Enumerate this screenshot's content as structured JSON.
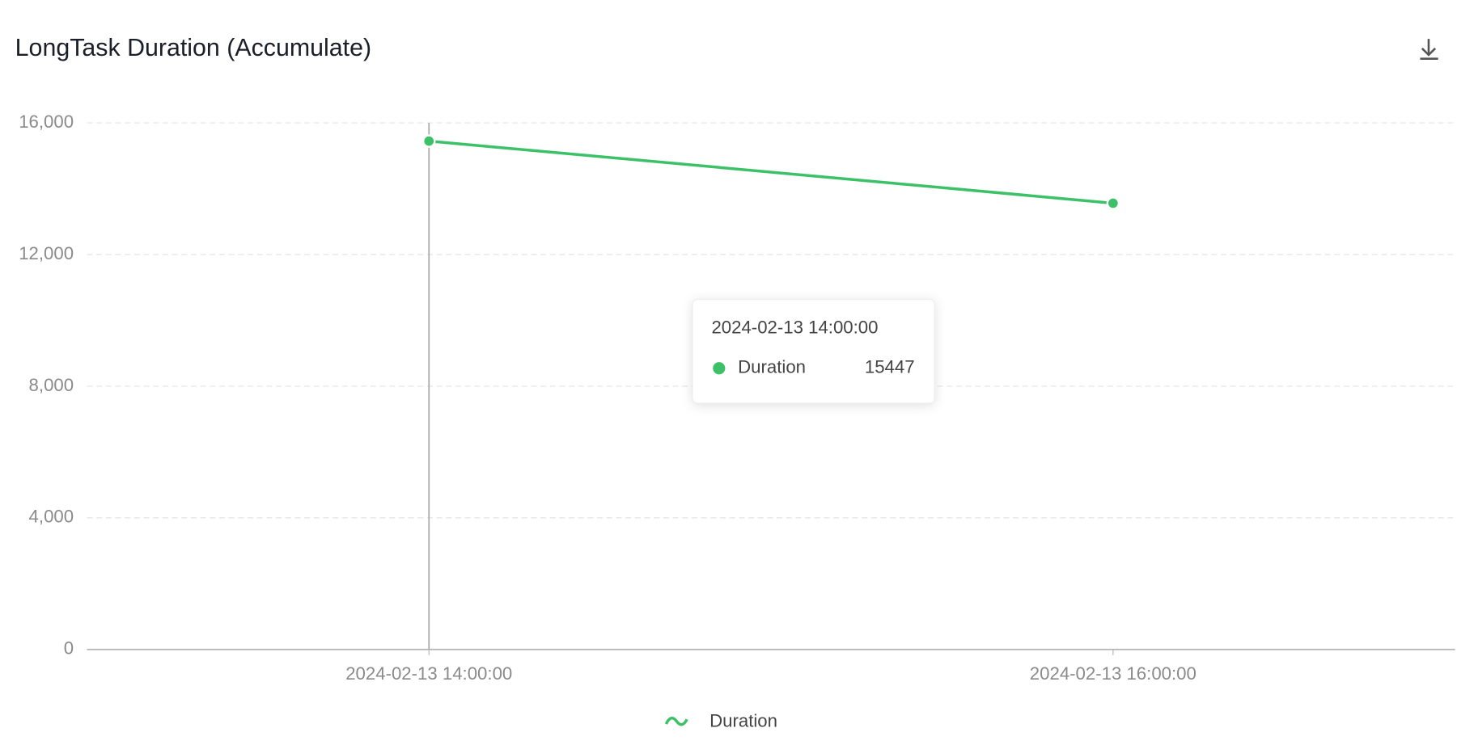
{
  "chart_data": {
    "type": "line",
    "title": "LongTask Duration (Accumulate)",
    "categories": [
      "2024-02-13 14:00:00",
      "2024-02-13 16:00:00"
    ],
    "series": [
      {
        "name": "Duration",
        "color": "#3cc168",
        "values": [
          15447,
          13560
        ]
      }
    ],
    "ylim": [
      0,
      16000
    ],
    "yticks": [
      0,
      {
        "value": 4000,
        "label": "4,000"
      },
      {
        "value": 8000,
        "label": "8,000"
      },
      {
        "value": 12000,
        "label": "12,000"
      },
      {
        "value": 16000,
        "label": "16,000"
      }
    ],
    "grid": true,
    "legend": "bottom"
  }
}
